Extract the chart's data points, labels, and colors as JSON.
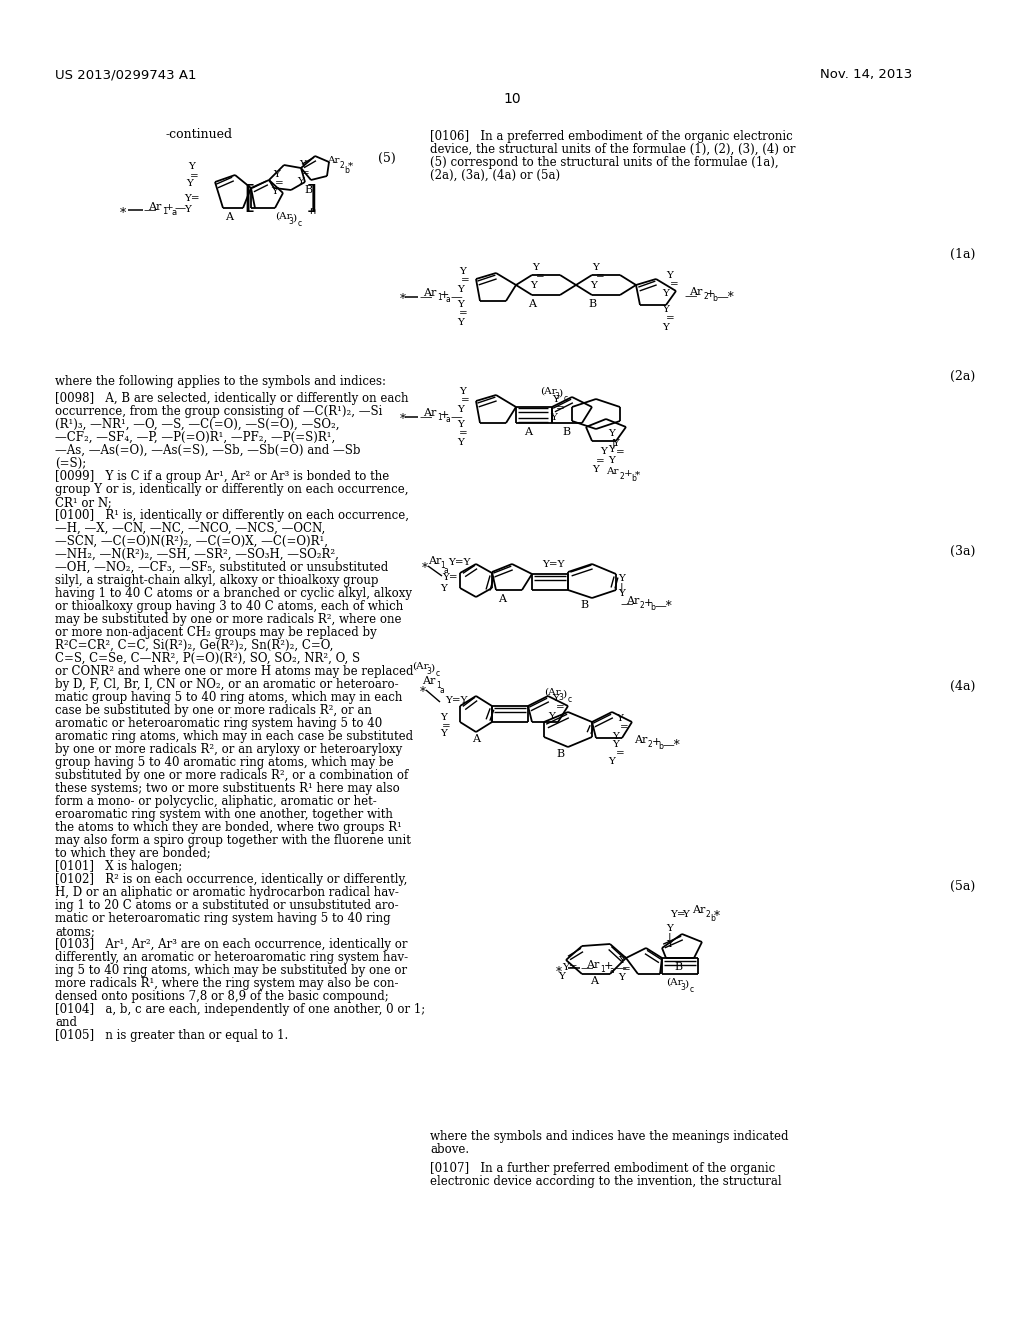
{
  "patent_number": "US 2013/0299743 A1",
  "patent_date": "Nov. 14, 2013",
  "page_number": "10",
  "background_color": "#ffffff",
  "continued_label": "-continued",
  "formula5_label": "(5)",
  "formula1a_label": "(1a)",
  "formula2a_label": "(2a)",
  "formula3a_label": "(3a)",
  "formula4a_label": "(4a)",
  "formula5a_label": "(5a)",
  "para0106": "[0106]   In a preferred embodiment of the organic electronic\ndevice, the structural units of the formulae (1), (2), (3), (4) or\n(5) correspond to the structural units of the formulae (1a),\n(2a), (3a), (4a) or (5a)",
  "where_text": "where the following applies to the symbols and indices:",
  "para0098_lines": [
    "[0098]   A, B are selected, identically or differently on each",
    "occurrence, from the group consisting of —C(R¹)₂, —Si",
    "(R¹)₃, —NR¹, —O, —S, —C(=O), —S(=O), —SO₂,",
    "—CF₂, —SF₄, —P, —P(=O)R¹, —PF₂, —P(=S)R¹,",
    "—As, —As(=O), —As(=S), —Sb, —Sb(=O) and —Sb",
    "(=S);"
  ],
  "para0099_lines": [
    "[0099]   Y is C if a group Ar¹, Ar² or Ar³ is bonded to the",
    "group Y or is, identically or differently on each occurrence,",
    "CR¹ or N;"
  ],
  "para0100_lines": [
    "[0100]   R¹ is, identically or differently on each occurrence,",
    "—H, —X, —CN, —NC, —NCO, —NCS, —OCN,",
    "—SCN, —C(=O)N(R²)₂, —C(=O)X, —C(=O)R¹,",
    "—NH₂, —N(R²)₂, —SH, —SR², —SO₃H, —SO₂R²,",
    "—OH, —NO₂, —CF₃, —SF₅, substituted or unsubstituted",
    "silyl, a straight-chain alkyl, alkoxy or thioalkoxy group",
    "having 1 to 40 C atoms or a branched or cyclic alkyl, alkoxy",
    "or thioalkoxy group having 3 to 40 C atoms, each of which",
    "may be substituted by one or more radicals R², where one",
    "or more non-adjacent CH₂ groups may be replaced by",
    "R²C=CR², C=C, Si(R²)₂, Ge(R²)₂, Sn(R²)₂, C=O,",
    "C=S, C=Se, C—NR², P(=O)(R²), SO, SO₂, NR², O, S",
    "or CONR² and where one or more H atoms may be replaced",
    "by D, F, Cl, Br, I, CN or NO₂, or an aromatic or heteroaro-",
    "matic group having 5 to 40 ring atoms, which may in each",
    "case be substituted by one or more radicals R², or an",
    "aromatic or heteroaromatic ring system having 5 to 40",
    "aromatic ring atoms, which may in each case be substituted",
    "by one or more radicals R², or an aryloxy or heteroaryloxy",
    "group having 5 to 40 aromatic ring atoms, which may be",
    "substituted by one or more radicals R², or a combination of",
    "these systems; two or more substituents R¹ here may also",
    "form a mono- or polycyclic, aliphatic, aromatic or het-",
    "eroaromatic ring system with one another, together with",
    "the atoms to which they are bonded, where two groups R¹",
    "may also form a spiro group together with the fluorene unit",
    "to which they are bonded;"
  ],
  "para0101_lines": [
    "[0101]   X is halogen;"
  ],
  "para0102_lines": [
    "[0102]   R² is on each occurrence, identically or differently,",
    "H, D or an aliphatic or aromatic hydrocarbon radical hav-",
    "ing 1 to 20 C atoms or a substituted or unsubstituted aro-",
    "matic or heteroaromatic ring system having 5 to 40 ring",
    "atoms;"
  ],
  "para0103_lines": [
    "[0103]   Ar¹, Ar², Ar³ are on each occurrence, identically or",
    "differently, an aromatic or heteroaromatic ring system hav-",
    "ing 5 to 40 ring atoms, which may be substituted by one or",
    "more radicals R¹, where the ring system may also be con-",
    "densed onto positions 7,8 or 8,9 of the basic compound;"
  ],
  "para0104_lines": [
    "[0104]   a, b, c are each, independently of one another, 0 or 1;",
    "and"
  ],
  "para0105_lines": [
    "[0105]   n is greater than or equal to 1."
  ],
  "where_symbols": "where the symbols and indices have the meanings indicated\nabove.",
  "para0107_lines": [
    "[0107]   In a further preferred embodiment of the organic",
    "electronic device according to the invention, the structural"
  ]
}
